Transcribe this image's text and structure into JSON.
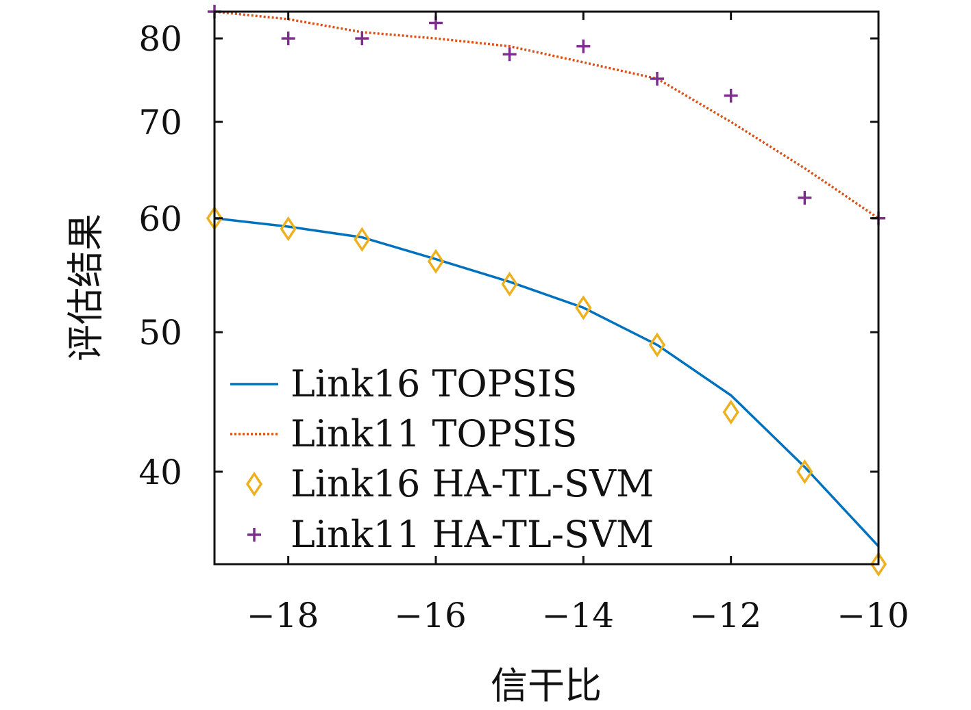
{
  "chart_data": {
    "type": "line",
    "xlabel": "信干比",
    "ylabel": "评估结果",
    "xlim": [
      -19,
      -10
    ],
    "ylim": [
      34.5,
      83.5
    ],
    "y_scale": "log",
    "x_ticks": [
      -18,
      -16,
      -14,
      -12,
      -10
    ],
    "x_tick_labels": [
      "−18",
      "−16",
      "−14",
      "−12",
      "−10"
    ],
    "y_ticks": [
      40,
      50,
      60,
      70,
      80
    ],
    "y_tick_labels": [
      "40",
      "50",
      "60",
      "70",
      "80"
    ],
    "grid": false,
    "legend_position": "bottom-left",
    "series": [
      {
        "name": "Link16 TOPSIS",
        "style": "line-solid",
        "color": "#0072BD",
        "x": [
          -19,
          -18,
          -17,
          -16,
          -15,
          -14,
          -13,
          -12,
          -11,
          -10
        ],
        "y": [
          60,
          59.2,
          58.2,
          56.2,
          54.2,
          52,
          49,
          45.2,
          40.3,
          35.5
        ]
      },
      {
        "name": "Link11 TOPSIS",
        "style": "line-dotted",
        "color": "#D95319",
        "x": [
          -19,
          -18,
          -17,
          -16,
          -15,
          -14,
          -13,
          -12,
          -11,
          -10
        ],
        "y": [
          83.5,
          82.5,
          80.8,
          80,
          79,
          77,
          75,
          70,
          65,
          60
        ]
      },
      {
        "name": "Link16 HA-TL-SVM",
        "style": "marker-diamond",
        "color": "#EDB120",
        "x": [
          -19,
          -18,
          -17,
          -16,
          -15,
          -14,
          -13,
          -12,
          -11,
          -10
        ],
        "y": [
          60,
          59,
          58,
          56,
          54,
          52,
          49,
          44,
          40,
          34.5
        ]
      },
      {
        "name": "Link11 HA-TL-SVM",
        "style": "marker-plus",
        "color": "#7E2F8E",
        "x": [
          -19,
          -18,
          -17,
          -16,
          -15,
          -14,
          -13,
          -12,
          -11,
          -10
        ],
        "y": [
          83.5,
          80,
          80,
          82,
          78,
          79,
          75,
          73,
          62,
          60
        ]
      }
    ]
  }
}
